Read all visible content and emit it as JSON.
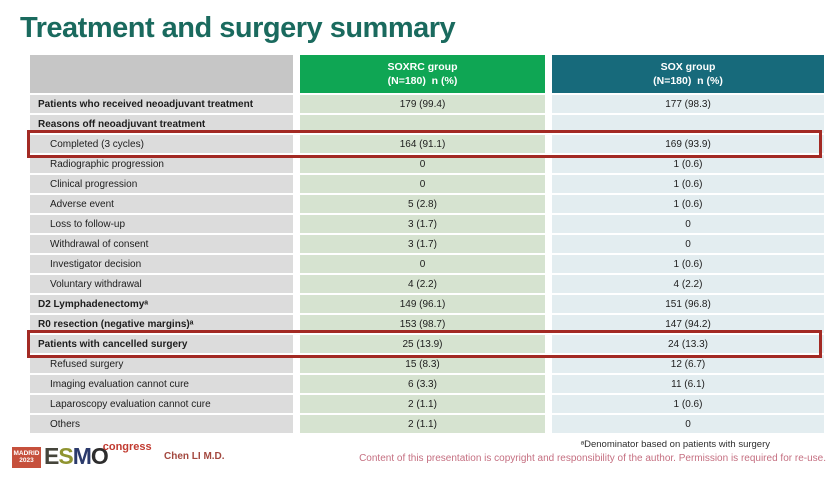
{
  "slide": {
    "title": "Treatment and surgery summary"
  },
  "table": {
    "headers": {
      "label": "",
      "soxrc": {
        "line1": "SOXRC group",
        "line2": "(N=180)  n (%)"
      },
      "sox": {
        "line1": "SOX group",
        "line2": "(N=180)  n (%)"
      }
    },
    "rows": [
      {
        "label": "Patients who received neoadjuvant treatment",
        "style": "bold",
        "soxrc": "179 (99.4)",
        "sox": "177 (98.3)",
        "highlight": false
      },
      {
        "label": "Reasons off neoadjuvant treatment",
        "style": "bold",
        "soxrc": "",
        "sox": "",
        "highlight": false
      },
      {
        "label": "Completed (3 cycles)",
        "style": "indent",
        "soxrc": "164 (91.1)",
        "sox": "169 (93.9)",
        "highlight": true
      },
      {
        "label": "Radiographic progression",
        "style": "indent",
        "soxrc": "0",
        "sox": "1 (0.6)",
        "highlight": false
      },
      {
        "label": "Clinical progression",
        "style": "indent",
        "soxrc": "0",
        "sox": "1 (0.6)",
        "highlight": false
      },
      {
        "label": "Adverse event",
        "style": "indent",
        "soxrc": "5 (2.8)",
        "sox": "1 (0.6)",
        "highlight": false
      },
      {
        "label": "Loss to follow-up",
        "style": "indent",
        "soxrc": "3 (1.7)",
        "sox": "0",
        "highlight": false
      },
      {
        "label": "Withdrawal of consent",
        "style": "indent",
        "soxrc": "3 (1.7)",
        "sox": "0",
        "highlight": false
      },
      {
        "label": "Investigator decision",
        "style": "indent",
        "soxrc": "0",
        "sox": "1 (0.6)",
        "highlight": false
      },
      {
        "label": "Voluntary withdrawal",
        "style": "indent",
        "soxrc": "4 (2.2)",
        "sox": "4 (2.2)",
        "highlight": false
      },
      {
        "label": "D2 Lymphadenectomyᵃ",
        "style": "bold",
        "soxrc": "149 (96.1)",
        "sox": "151 (96.8)",
        "highlight": false
      },
      {
        "label": "R0 resection (negative margins)ᵃ",
        "style": "bold",
        "soxrc": "153 (98.7)",
        "sox": "147 (94.2)",
        "highlight": false
      },
      {
        "label": "Patients with cancelled surgery",
        "style": "bold",
        "soxrc": "25 (13.9)",
        "sox": "24 (13.3)",
        "highlight": true
      },
      {
        "label": "Refused surgery",
        "style": "indent",
        "soxrc": "15 (8.3)",
        "sox": "12 (6.7)",
        "highlight": false
      },
      {
        "label": "Imaging evaluation cannot cure",
        "style": "indent",
        "soxrc": "6 (3.3)",
        "sox": "11 (6.1)",
        "highlight": false
      },
      {
        "label": "Laparoscopy evaluation cannot cure",
        "style": "indent",
        "soxrc": "2 (1.1)",
        "sox": "1 (0.6)",
        "highlight": false
      },
      {
        "label": "Others",
        "style": "indent",
        "soxrc": "2 (1.1)",
        "sox": "0",
        "highlight": false
      }
    ]
  },
  "footer": {
    "footnote": "ᵃDenominator based on patients with surgery",
    "copyright": "Content of this presentation is copyright and responsibility of the author.  Permission is required for re-use.",
    "presenter": "Chen LI M.D.",
    "logo": {
      "madrid_line1": "MADRID",
      "madrid_line2": "2023",
      "esmo_letters": [
        "E",
        "S",
        "M",
        "O"
      ],
      "congress": "congress"
    }
  },
  "colors": {
    "title_teal": "#1a6a5e",
    "header_green": "#0fa654",
    "header_teal": "#176a7b",
    "gray_header": "#c6c6c6",
    "gray_cell": "#dcdcdc",
    "green_cell": "#d6e3d0",
    "blue_cell": "#e3edf0",
    "highlight_red": "#a32a24",
    "copyright_pink": "#c56f81",
    "presenter_red": "#a3483f",
    "madrid_red": "#c6503c",
    "congress_red": "#c13a30"
  }
}
